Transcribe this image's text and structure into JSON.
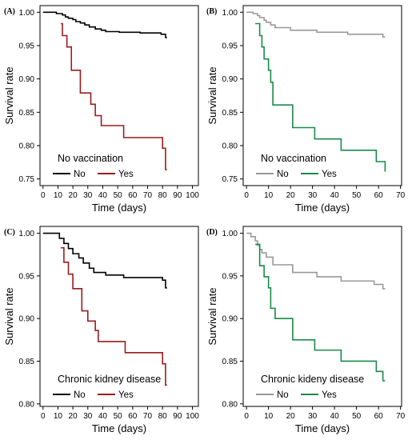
{
  "figure": {
    "charts": [
      {
        "panel_label": "(A)",
        "type": "line",
        "step": true,
        "xlabel": "Time (days)",
        "ylabel": "Survival rate",
        "xlim": [
          -2,
          104
        ],
        "ylim": [
          0.74,
          1.01
        ],
        "xticks": [
          0,
          10,
          20,
          30,
          40,
          50,
          60,
          70,
          80,
          90,
          100
        ],
        "yticks": [
          0.75,
          0.8,
          0.85,
          0.9,
          0.95,
          1.0
        ],
        "legend": {
          "title": "No vaccination",
          "position": "bottom-left"
        },
        "series": [
          {
            "name": "No",
            "color": "#000000",
            "x": [
              0,
              9,
              13,
              15,
              17,
              20,
              22,
              25,
              28,
              31,
              35,
              39,
              42,
              51,
              65,
              79,
              82,
              83
            ],
            "y": [
              1.0,
              0.998,
              0.996,
              0.993,
              0.991,
              0.989,
              0.986,
              0.984,
              0.981,
              0.978,
              0.975,
              0.973,
              0.971,
              0.97,
              0.969,
              0.967,
              0.962,
              0.962
            ]
          },
          {
            "name": "Yes",
            "color": "#9b1c1c",
            "x": [
              12,
              13,
              16,
              19,
              25,
              32,
              35,
              39,
              54,
              80,
              82,
              83
            ],
            "y": [
              0.983,
              0.965,
              0.948,
              0.913,
              0.879,
              0.862,
              0.845,
              0.83,
              0.812,
              0.796,
              0.764,
              0.764
            ]
          }
        ]
      },
      {
        "panel_label": "(B)",
        "type": "line",
        "step": true,
        "xlabel": "Time (days)",
        "ylabel": "Survival rate",
        "xlim": [
          -1.5,
          70.5
        ],
        "ylim": [
          0.74,
          1.01
        ],
        "xticks": [
          0,
          10,
          20,
          30,
          40,
          50,
          60,
          70
        ],
        "yticks": [
          0.75,
          0.8,
          0.85,
          0.9,
          0.95,
          1.0
        ],
        "legend": {
          "title": "No vaccination",
          "position": "bottom-left"
        },
        "series": [
          {
            "name": "No",
            "color": "#999999",
            "x": [
              0,
              3,
              5,
              6,
              8,
              9,
              11,
              13,
              20,
              32,
              46,
              62,
              63
            ],
            "y": [
              1.0,
              0.998,
              0.995,
              0.992,
              0.988,
              0.985,
              0.981,
              0.977,
              0.973,
              0.97,
              0.967,
              0.963,
              0.963
            ]
          },
          {
            "name": "Yes",
            "color": "#1a8a4a",
            "x": [
              4,
              6,
              7,
              8,
              10,
              11,
              12,
              21,
              31,
              43,
              59,
              63
            ],
            "y": [
              0.983,
              0.965,
              0.948,
              0.93,
              0.913,
              0.895,
              0.861,
              0.827,
              0.81,
              0.793,
              0.776,
              0.761
            ]
          }
        ]
      },
      {
        "panel_label": "(C)",
        "type": "line",
        "step": true,
        "xlabel": "Time (days)",
        "ylabel": "Survival rate",
        "xlim": [
          -2,
          104
        ],
        "ylim": [
          0.797,
          1.008
        ],
        "xticks": [
          0,
          10,
          20,
          30,
          40,
          50,
          60,
          70,
          80,
          90,
          100
        ],
        "yticks": [
          0.8,
          0.85,
          0.9,
          0.95,
          1.0
        ],
        "legend": {
          "title": "Chronic kidney disease",
          "position": "bottom-left"
        },
        "series": [
          {
            "name": "No",
            "color": "#000000",
            "x": [
              0,
              11,
              14,
              17,
              20,
              24,
              27,
              31,
              34,
              38,
              42,
              54,
              80,
              82,
              83
            ],
            "y": [
              1.0,
              0.994,
              0.988,
              0.982,
              0.976,
              0.971,
              0.965,
              0.959,
              0.954,
              0.954,
              0.951,
              0.948,
              0.945,
              0.936,
              0.936
            ]
          },
          {
            "name": "Yes",
            "color": "#9b1c1c",
            "x": [
              12,
              14,
              17,
              20,
              26,
              30,
              35,
              37,
              40,
              55,
              80,
              82,
              83
            ],
            "y": [
              0.983,
              0.966,
              0.952,
              0.935,
              0.909,
              0.897,
              0.886,
              0.873,
              0.873,
              0.86,
              0.847,
              0.822,
              0.822
            ]
          }
        ]
      },
      {
        "panel_label": "(D)",
        "type": "line",
        "step": true,
        "xlabel": "Time (days)",
        "ylabel": "Survival rate",
        "xlim": [
          -1.5,
          70.5
        ],
        "ylim": [
          0.797,
          1.008
        ],
        "xticks": [
          0,
          10,
          20,
          30,
          40,
          50,
          60,
          70
        ],
        "yticks": [
          0.8,
          0.85,
          0.9,
          0.95,
          1.0
        ],
        "legend": {
          "title": "Chronic kideny disease",
          "position": "bottom-left"
        },
        "series": [
          {
            "name": "No",
            "color": "#999999",
            "x": [
              0,
              2,
              4,
              5,
              6,
              7,
              9,
              12,
              21,
              32,
              43,
              58,
              62,
              63
            ],
            "y": [
              1.0,
              0.996,
              0.991,
              0.986,
              0.981,
              0.977,
              0.972,
              0.963,
              0.954,
              0.949,
              0.944,
              0.94,
              0.935,
              0.935
            ]
          },
          {
            "name": "Yes",
            "color": "#1a8a4a",
            "x": [
              4,
              6,
              8,
              10,
              11,
              13,
              21,
              31,
              43,
              59,
              62,
              63
            ],
            "y": [
              0.987,
              0.962,
              0.949,
              0.936,
              0.912,
              0.9,
              0.875,
              0.863,
              0.85,
              0.838,
              0.827,
              0.827
            ]
          }
        ]
      }
    ]
  }
}
